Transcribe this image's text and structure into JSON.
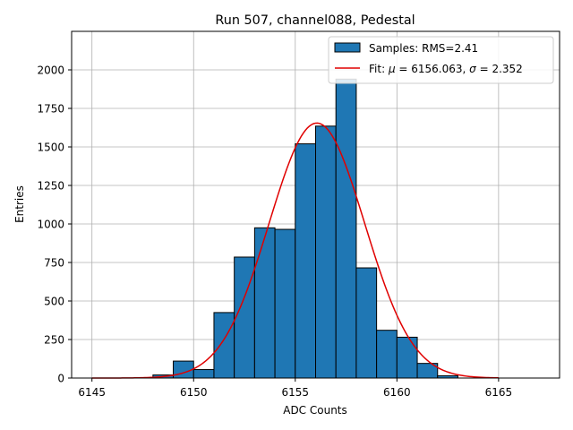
{
  "chart_data": {
    "type": "bar",
    "title": "Run 507, channel088, Pedestal",
    "xlabel": "ADC Counts",
    "ylabel": "Entries",
    "xlim": [
      6144,
      6168
    ],
    "ylim": [
      0,
      2250
    ],
    "grid": true,
    "x_ticks": [
      6145,
      6150,
      6155,
      6160,
      6165
    ],
    "y_ticks": [
      0,
      250,
      500,
      750,
      1000,
      1250,
      1500,
      1750,
      2000
    ],
    "bin_edges": [
      6148,
      6149,
      6150,
      6151,
      6152,
      6153,
      6154,
      6155,
      6156,
      6157,
      6158,
      6159,
      6160,
      6161,
      6162,
      6163
    ],
    "histogram": {
      "name": "Samples: RMS=2.41",
      "color": "#1f77b4",
      "values": [
        20,
        110,
        55,
        425,
        785,
        975,
        965,
        1520,
        1635,
        1940,
        715,
        310,
        265,
        95,
        15
      ]
    },
    "fit": {
      "name_prefix": "Fit: ",
      "mu_symbol": "μ",
      "mu_text": " = 6156.063, ",
      "sigma_symbol": "σ",
      "sigma_text": " = 2.352",
      "mu": 6156.063,
      "sigma": 2.352,
      "amplitude": 1655,
      "x_range": [
        6145,
        6165
      ],
      "color": "#e00000"
    },
    "legend_position": "top-right"
  }
}
